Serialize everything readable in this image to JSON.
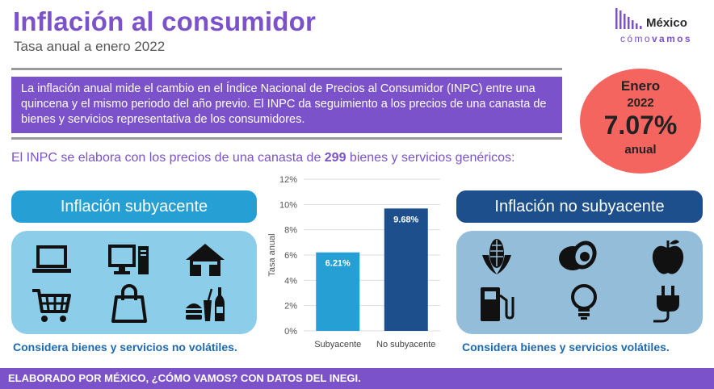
{
  "header": {
    "title": "Inflación al consumidor",
    "subtitle": "Tasa anual a enero 2022"
  },
  "logo": {
    "name": "México",
    "tag_light": "cómo",
    "tag_bold": "vamos"
  },
  "intro": "La inflación anual mide el cambio en el Índice Nacional de Precios al Consumidor (INPC) entre una quincena y el mismo periodo del año previo. El INPC da seguimiento a los precios de una canasta de bienes y servicios representativa de los consumidores.",
  "badge": {
    "month": "Enero",
    "year": "2022",
    "rate": "7.07%",
    "unit": "anual"
  },
  "inpc": {
    "before": "El INPC se elabora con los precios de una canasta de ",
    "count": "299",
    "after": " bienes y servicios genéricos:"
  },
  "core": {
    "label": "Inflación subyacente",
    "caption": "Considera bienes y servicios no volátiles.",
    "icons": [
      "laptop-icon",
      "desktop-computer-icon",
      "house-icon",
      "shopping-cart-icon",
      "shopping-bag-icon",
      "food-and-drinks-icon"
    ]
  },
  "noncore": {
    "label": "Inflación no subyacente",
    "caption": "Considera bienes y servicios volátiles.",
    "icons": [
      "corn-icon",
      "avocado-icon",
      "apple-icon",
      "fuel-pump-icon",
      "light-bulb-icon",
      "electric-plug-icon"
    ]
  },
  "colors": {
    "purple": "#7b52c9",
    "core_blue": "#26a0d4",
    "noncore_navy": "#1c4f8c",
    "badge_red": "#f46560"
  },
  "chart_data": {
    "type": "bar",
    "categories": [
      "Subyacente",
      "No subyacente"
    ],
    "values": [
      6.21,
      9.68
    ],
    "value_labels": [
      "6.21%",
      "9.68%"
    ],
    "bar_colors": [
      "#26a0d4",
      "#1c4f8c"
    ],
    "ylabel": "Tasa anual",
    "ylim": [
      0,
      12
    ],
    "yticks": [
      "0%",
      "2%",
      "4%",
      "6%",
      "8%",
      "10%",
      "12%"
    ],
    "grid": true
  },
  "footer": "ELABORADO POR MÉXICO, ¿CÓMO VAMOS? CON DATOS DEL INEGI."
}
